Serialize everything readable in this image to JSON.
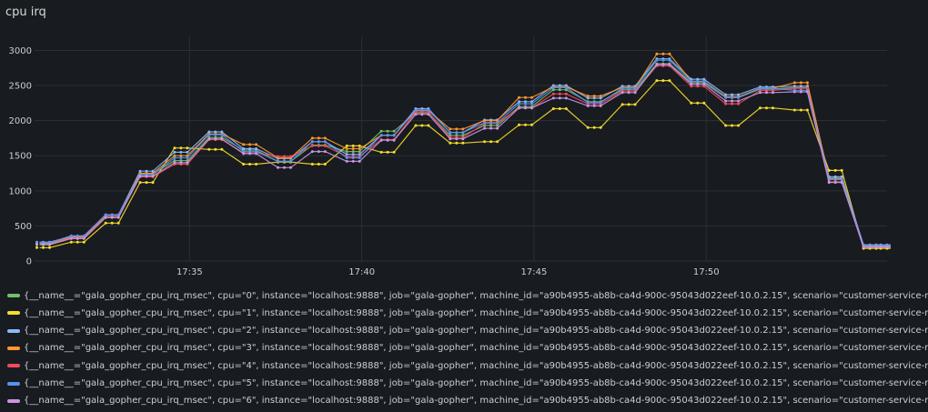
{
  "panel": {
    "title": "cpu irq"
  },
  "chart_data": {
    "type": "line",
    "title": "cpu irq",
    "xlabel": "",
    "ylabel": "",
    "ylim": [
      0,
      3200
    ],
    "yticks": [
      0,
      500,
      1000,
      1500,
      2000,
      2500,
      3000
    ],
    "xticks": [
      "17:35",
      "17:40",
      "17:45",
      "17:50"
    ],
    "xlim": [
      "17:30:30",
      "17:55:15"
    ],
    "grid": true,
    "legend_position": "bottom",
    "x": [
      "17:30:45",
      "17:31:45",
      "17:32:45",
      "17:33:45",
      "17:34:45",
      "17:35:45",
      "17:36:45",
      "17:37:45",
      "17:38:45",
      "17:39:45",
      "17:40:45",
      "17:41:45",
      "17:42:45",
      "17:43:45",
      "17:44:45",
      "17:45:45",
      "17:46:45",
      "17:47:45",
      "17:48:45",
      "17:49:45",
      "17:50:45",
      "17:51:45",
      "17:52:45",
      "17:53:45",
      "17:54:45",
      "17:55:15"
    ],
    "series": [
      {
        "name": "{__name__=\"gala_gopher_cpu_irq_msec\", cpu=\"0\", instance=\"localhost:9888\", job=\"gala-gopher\", machine_id=\"a90b4955-ab8b-ca4d-900c-95043d022eef-10.0.2.15\", scenario=\"customer-service-r",
        "color": "#73bf69",
        "values": [
          230,
          320,
          620,
          1240,
          1430,
          1760,
          1580,
          1420,
          1650,
          1560,
          1850,
          2110,
          1790,
          1930,
          2200,
          2440,
          2270,
          2440,
          2810,
          2540,
          2330,
          2450,
          2470,
          1180,
          220,
          220
        ]
      },
      {
        "name": "{__name__=\"gala_gopher_cpu_irq_msec\", cpu=\"1\", instance=\"localhost:9888\", job=\"gala-gopher\", machine_id=\"a90b4955-ab8b-ca4d-900c-95043d022eef-10.0.2.15\", scenario=\"customer-service-r",
        "color": "#fade2a",
        "values": [
          190,
          270,
          540,
          1120,
          1610,
          1590,
          1380,
          1410,
          1380,
          1640,
          1550,
          1930,
          1680,
          1700,
          1940,
          2170,
          1900,
          2230,
          2570,
          2250,
          1930,
          2180,
          2150,
          1290,
          180,
          180
        ]
      },
      {
        "name": "{__name__=\"gala_gopher_cpu_irq_msec\", cpu=\"2\", instance=\"localhost:9888\", job=\"gala-gopher\", machine_id=\"a90b4955-ab8b-ca4d-900c-95043d022eef-10.0.2.15\", scenario=\"customer-service-r",
        "color": "#8ab8ff",
        "values": [
          270,
          350,
          660,
          1280,
          1550,
          1840,
          1600,
          1460,
          1700,
          1520,
          1790,
          2170,
          1830,
          2010,
          2270,
          2500,
          2320,
          2490,
          2880,
          2590,
          2370,
          2480,
          2490,
          1200,
          230,
          230
        ]
      },
      {
        "name": "{__name__=\"gala_gopher_cpu_irq_msec\", cpu=\"3\", instance=\"localhost:9888\", job=\"gala-gopher\", machine_id=\"a90b4955-ab8b-ca4d-900c-95043d022eef-10.0.2.15\", scenario=\"customer-service-r",
        "color": "#ff9830",
        "values": [
          250,
          340,
          650,
          1250,
          1500,
          1810,
          1660,
          1470,
          1750,
          1600,
          1790,
          2140,
          1880,
          2000,
          2330,
          2480,
          2350,
          2470,
          2950,
          2560,
          2340,
          2460,
          2540,
          1170,
          210,
          210
        ]
      },
      {
        "name": "{__name__=\"gala_gopher_cpu_irq_msec\", cpu=\"4\", instance=\"localhost:9888\", job=\"gala-gopher\", machine_id=\"a90b4955-ab8b-ca4d-900c-95043d022eef-10.0.2.15\", scenario=\"customer-service-r",
        "color": "#f2495c",
        "values": [
          240,
          330,
          630,
          1200,
          1380,
          1730,
          1540,
          1490,
          1640,
          1490,
          1730,
          2120,
          1760,
          1960,
          2180,
          2380,
          2240,
          2420,
          2780,
          2490,
          2240,
          2430,
          2460,
          1130,
          200,
          200
        ]
      },
      {
        "name": "{__name__=\"gala_gopher_cpu_irq_msec\", cpu=\"5\", instance=\"localhost:9888\", job=\"gala-gopher\", machine_id=\"a90b4955-ab8b-ca4d-900c-95043d022eef-10.0.2.15\", scenario=\"customer-service-r",
        "color": "#5794f2",
        "values": [
          260,
          360,
          660,
          1230,
          1470,
          1800,
          1560,
          1420,
          1700,
          1470,
          1790,
          2150,
          1830,
          1970,
          2240,
          2470,
          2260,
          2460,
          2860,
          2560,
          2330,
          2460,
          2430,
          1160,
          220,
          220
        ]
      },
      {
        "name": "{__name__=\"gala_gopher_cpu_irq_msec\", cpu=\"6\", instance=\"localhost:9888\", job=\"gala-gopher\", machine_id=\"a90b4955-ab8b-ca4d-900c-95043d022eef-10.0.2.15\", scenario=\"customer-service-r",
        "color": "#ca95e5",
        "values": [
          240,
          320,
          620,
          1210,
          1400,
          1740,
          1530,
          1330,
          1560,
          1420,
          1720,
          2090,
          1740,
          1890,
          2180,
          2320,
          2210,
          2400,
          2800,
          2520,
          2280,
          2400,
          2410,
          1120,
          200,
          200
        ]
      }
    ]
  }
}
